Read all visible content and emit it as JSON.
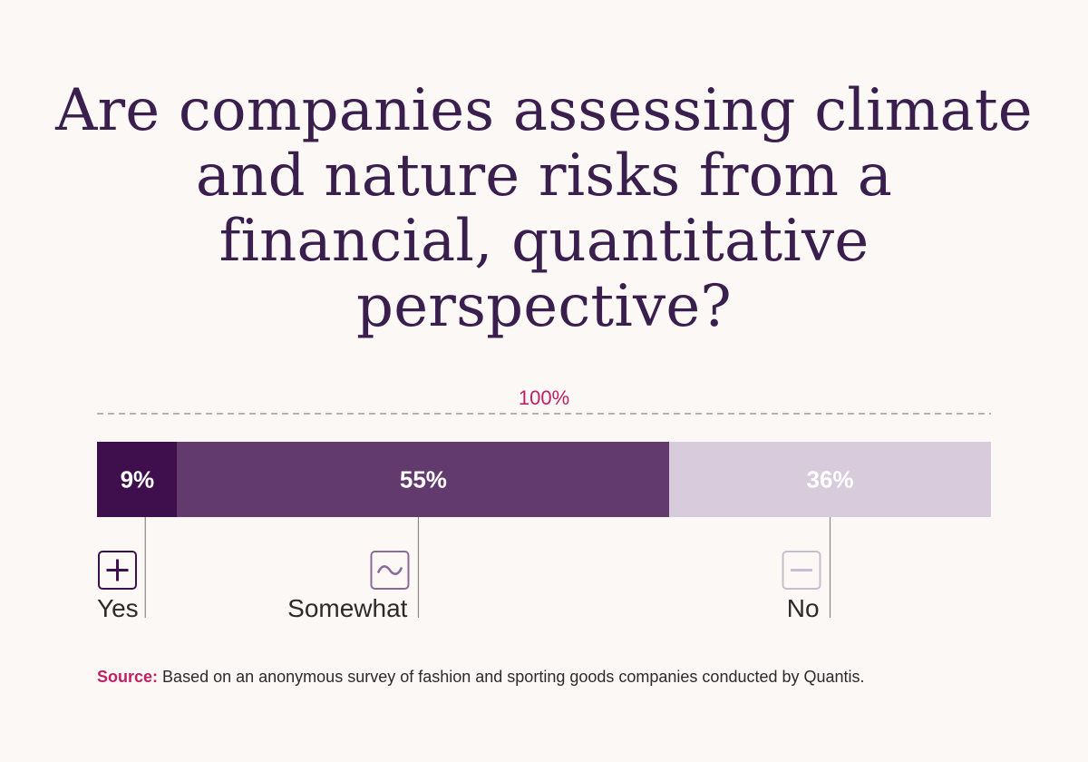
{
  "chart_data": {
    "type": "bar",
    "orientation": "horizontal-stacked",
    "title": "Are companies assessing climate and nature risks from a financial, quantitative perspective?",
    "total_label": "100%",
    "categories": [
      "Yes",
      "Somewhat",
      "No"
    ],
    "values": [
      9,
      55,
      36
    ],
    "value_labels": [
      "9%",
      "55%",
      "36%"
    ],
    "icons": [
      "plus-icon",
      "tilde-icon",
      "minus-icon"
    ],
    "colors": [
      "#3f0f4d",
      "#633a6e",
      "#d7cbdc"
    ],
    "xlim": [
      0,
      100
    ]
  },
  "colors": {
    "background": "#fcf8f5",
    "title": "#3a1f4e",
    "accent": "#c21e63",
    "label_text": "#2b2b2b"
  },
  "source": {
    "label": "Source:",
    "text": "Based on an anonymous survey of fashion and sporting goods companies conducted by Quantis."
  }
}
